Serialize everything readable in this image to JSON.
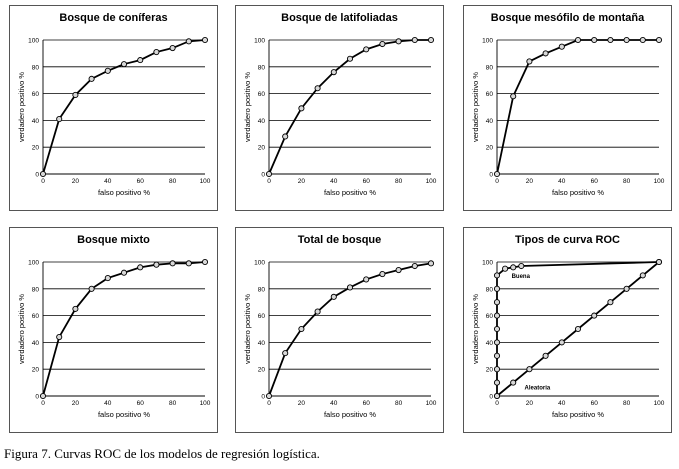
{
  "caption": "Figura 7. Curvas ROC de los modelos de regresión logística.",
  "chart_data": [
    {
      "type": "line",
      "title": "Bosque de coníferas",
      "xlabel": "falso positivo %",
      "ylabel": "verdadero positivo %",
      "xlim": [
        0,
        100
      ],
      "ylim": [
        0,
        100
      ],
      "xticks": [
        "0",
        "20",
        "40",
        "60",
        "80",
        "100"
      ],
      "yticks": [
        "0",
        "20",
        "40",
        "60",
        "80",
        "100"
      ],
      "series": [
        {
          "name": "ROC",
          "x": [
            0,
            10,
            20,
            30,
            40,
            50,
            60,
            70,
            80,
            90,
            100
          ],
          "y": [
            0,
            41,
            59,
            71,
            77,
            82,
            85,
            91,
            94,
            99,
            100
          ]
        }
      ]
    },
    {
      "type": "line",
      "title": "Bosque de latifoliadas",
      "xlabel": "falso positivo %",
      "ylabel": "verdadero positivo %",
      "xlim": [
        0,
        100
      ],
      "ylim": [
        0,
        100
      ],
      "xticks": [
        "0",
        "20",
        "40",
        "60",
        "80",
        "100"
      ],
      "yticks": [
        "0",
        "20",
        "40",
        "60",
        "80",
        "100"
      ],
      "series": [
        {
          "name": "ROC",
          "x": [
            0,
            10,
            20,
            30,
            40,
            50,
            60,
            70,
            80,
            90,
            100
          ],
          "y": [
            0,
            28,
            49,
            64,
            76,
            86,
            93,
            97,
            99,
            100,
            100
          ]
        }
      ]
    },
    {
      "type": "line",
      "title": "Bosque mesófilo de montaña",
      "xlabel": "falso positivo %",
      "ylabel": "verdadero positivo %",
      "xlim": [
        0,
        100
      ],
      "ylim": [
        0,
        100
      ],
      "xticks": [
        "0",
        "20",
        "40",
        "60",
        "80",
        "100"
      ],
      "yticks": [
        "0",
        "20",
        "40",
        "60",
        "80",
        "100"
      ],
      "series": [
        {
          "name": "ROC",
          "x": [
            0,
            10,
            20,
            30,
            40,
            50,
            60,
            70,
            80,
            90,
            100
          ],
          "y": [
            0,
            58,
            84,
            90,
            95,
            100,
            100,
            100,
            100,
            100,
            100
          ]
        }
      ]
    },
    {
      "type": "line",
      "title": "Bosque mixto",
      "xlabel": "falso positivo %",
      "ylabel": "verdadero positivo %",
      "xlim": [
        0,
        100
      ],
      "ylim": [
        0,
        100
      ],
      "xticks": [
        "0",
        "20",
        "40",
        "60",
        "80",
        "100"
      ],
      "yticks": [
        "0",
        "20",
        "40",
        "60",
        "80",
        "100"
      ],
      "series": [
        {
          "name": "ROC",
          "x": [
            0,
            10,
            20,
            30,
            40,
            50,
            60,
            70,
            80,
            90,
            100
          ],
          "y": [
            0,
            44,
            65,
            80,
            88,
            92,
            96,
            98,
            99,
            99,
            100
          ]
        }
      ]
    },
    {
      "type": "line",
      "title": "Total de bosque",
      "xlabel": "falso positivo %",
      "ylabel": "verdadero positivo %",
      "xlim": [
        0,
        100
      ],
      "ylim": [
        0,
        100
      ],
      "xticks": [
        "0",
        "20",
        "40",
        "60",
        "80",
        "100"
      ],
      "yticks": [
        "0",
        "20",
        "40",
        "60",
        "80",
        "100"
      ],
      "series": [
        {
          "name": "ROC",
          "x": [
            0,
            10,
            20,
            30,
            40,
            50,
            60,
            70,
            80,
            90,
            100
          ],
          "y": [
            0,
            32,
            50,
            63,
            74,
            81,
            87,
            91,
            94,
            97,
            99
          ]
        }
      ]
    },
    {
      "type": "line",
      "title": "Tipos de curva ROC",
      "xlabel": "falso positivo %",
      "ylabel": "verdadero positivo %",
      "xlim": [
        0,
        100
      ],
      "ylim": [
        0,
        100
      ],
      "xticks": [
        "0",
        "20",
        "40",
        "60",
        "80",
        "100"
      ],
      "yticks": [
        "0",
        "20",
        "40",
        "60",
        "80",
        "100"
      ],
      "series": [
        {
          "name": "Buena",
          "x": [
            0,
            0,
            0,
            0,
            0,
            0,
            0,
            0,
            0,
            0,
            5,
            10,
            15,
            100
          ],
          "y": [
            0,
            10,
            20,
            30,
            40,
            50,
            60,
            70,
            80,
            90,
            95,
            96,
            97,
            100
          ]
        },
        {
          "name": "Aleatoria",
          "x": [
            0,
            10,
            20,
            30,
            40,
            50,
            60,
            70,
            80,
            90,
            100
          ],
          "y": [
            0,
            10,
            20,
            30,
            40,
            50,
            60,
            70,
            80,
            90,
            100
          ]
        }
      ],
      "annotations": [
        "Buena",
        "Aleatoria"
      ]
    }
  ]
}
